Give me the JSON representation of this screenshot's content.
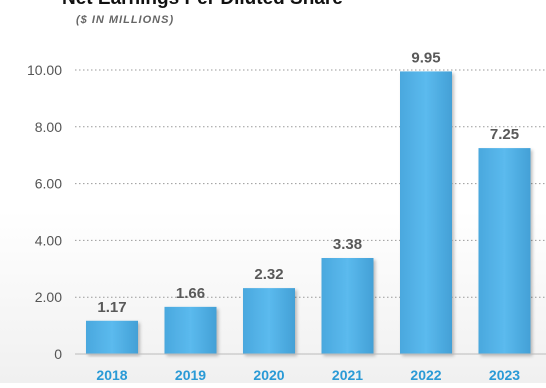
{
  "colors": {
    "bar": "#4fb3e8",
    "bar_top": "#5cc0f0",
    "bar_edge": "#3a93c7",
    "category_label": "#2a9ad6",
    "value_label": "#595959",
    "tick_label": "#555555",
    "grid": "#9a9a9a",
    "title": "#111111",
    "subtitle": "#666666"
  },
  "chart_data": {
    "type": "bar",
    "title": "Net Earnings Per Diluted Share",
    "subtitle": "($ IN MILLIONS)",
    "categories": [
      "2018",
      "2019",
      "2020",
      "2021",
      "2022",
      "2023"
    ],
    "values": [
      1.17,
      1.66,
      2.32,
      3.38,
      9.95,
      7.25
    ],
    "value_labels": [
      "1.17",
      "1.66",
      "2.32",
      "3.38",
      "9.95",
      "7.25"
    ],
    "ylim": [
      0,
      10
    ],
    "yticks": [
      0,
      2,
      4,
      6,
      8,
      10
    ],
    "ytick_labels": [
      "0",
      "2.00",
      "4.00",
      "6.00",
      "8.00",
      "10.00"
    ],
    "grid": "dotted-horizontal",
    "xlabel": "",
    "ylabel": ""
  }
}
